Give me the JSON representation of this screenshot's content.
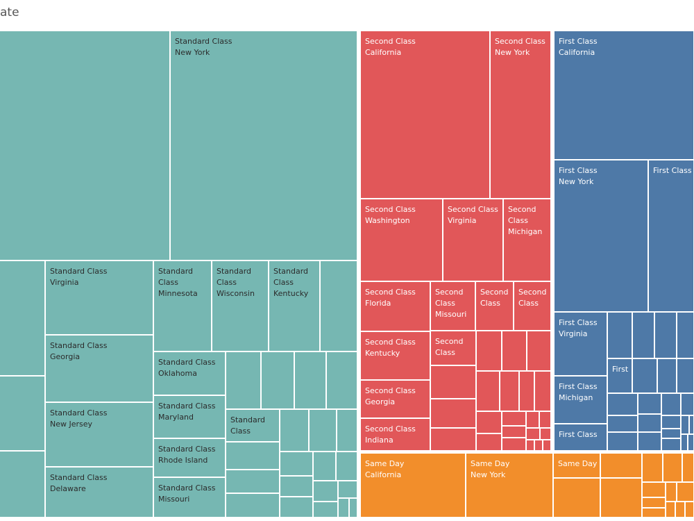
{
  "chart_data": {
    "type": "treemap",
    "title": "ate",
    "colors": {
      "Standard Class": "#76b7b2",
      "Second Class": "#e15759",
      "First Class": "#4e79a7",
      "Same Day": "#f28e2b"
    },
    "tiles": [
      {
        "ship_mode": "Standard Class",
        "state": "",
        "value": 1240
      },
      {
        "ship_mode": "Standard Class",
        "state": "New York",
        "value": 1180
      },
      {
        "ship_mode": "Standard Class",
        "state": "",
        "value": 90
      },
      {
        "ship_mode": "Standard Class",
        "state": "Virginia",
        "value": 218
      },
      {
        "ship_mode": "Standard Class",
        "state": "Minnesota",
        "value": 134
      },
      {
        "ship_mode": "Standard Class",
        "state": "Wisconsin",
        "value": 130
      },
      {
        "ship_mode": "Standard Class",
        "state": "Kentucky",
        "value": 119
      },
      {
        "ship_mode": "Standard Class",
        "state": "",
        "value": 86
      },
      {
        "ship_mode": "Standard Class",
        "state": "",
        "value": 70
      },
      {
        "ship_mode": "Standard Class",
        "state": "Georgia",
        "value": 197
      },
      {
        "ship_mode": "Standard Class",
        "state": "Oklahoma",
        "value": 107
      },
      {
        "ship_mode": "Standard Class",
        "state": "",
        "value": 69
      },
      {
        "ship_mode": "Standard Class",
        "state": "",
        "value": 64
      },
      {
        "ship_mode": "Standard Class",
        "state": "",
        "value": 61
      },
      {
        "ship_mode": "Standard Class",
        "state": "",
        "value": 58
      },
      {
        "ship_mode": "Standard Class",
        "state": "",
        "value": 66
      },
      {
        "ship_mode": "Standard Class",
        "state": "New Jersey",
        "value": 197
      },
      {
        "ship_mode": "Standard Class",
        "state": "Maryland",
        "value": 104
      },
      {
        "ship_mode": "Standard Class",
        "state": "",
        "value": 63
      },
      {
        "ship_mode": "Standard Class",
        "state": "",
        "value": 55
      },
      {
        "ship_mode": "Standard Class",
        "state": "",
        "value": 55
      },
      {
        "ship_mode": "Standard Class",
        "state": "",
        "value": 39
      },
      {
        "ship_mode": "Standard Class",
        "state": "Rhode Island",
        "value": 104
      },
      {
        "ship_mode": "Standard Class",
        "state": "",
        "value": 82
      },
      {
        "ship_mode": "Standard Class",
        "state": "Delaware",
        "value": 198
      },
      {
        "ship_mode": "Standard Class",
        "state": "Missouri",
        "value": 98
      },
      {
        "ship_mode": "Second Class",
        "state": "California",
        "value": 376
      },
      {
        "ship_mode": "Second Class",
        "state": "New York",
        "value": 196
      },
      {
        "ship_mode": "Second Class",
        "state": "Washington",
        "value": 120
      },
      {
        "ship_mode": "Second Class",
        "state": "Virginia",
        "value": 87
      },
      {
        "ship_mode": "Second Class",
        "state": "Michigan",
        "value": 67
      },
      {
        "ship_mode": "Second Class",
        "state": "Florida",
        "value": 63
      },
      {
        "ship_mode": "Second Class",
        "state": "Missouri",
        "value": 43
      },
      {
        "ship_mode": "Second Class",
        "state": "",
        "value": 35
      },
      {
        "ship_mode": "Second Class",
        "state": "",
        "value": 34
      },
      {
        "ship_mode": "Second Class",
        "state": "Kentucky",
        "value": 62
      },
      {
        "ship_mode": "Second Class",
        "state": "",
        "value": 26
      },
      {
        "ship_mode": "Second Class",
        "state": "Georgia",
        "value": 44
      },
      {
        "ship_mode": "Second Class",
        "state": "Indiana",
        "value": 39
      },
      {
        "ship_mode": "First Class",
        "state": "California",
        "value": 248
      },
      {
        "ship_mode": "First Class",
        "state": "New York",
        "value": 179
      },
      {
        "ship_mode": "First Class",
        "state": "",
        "value": 95
      },
      {
        "ship_mode": "First Class",
        "state": "Virginia",
        "value": 55
      },
      {
        "ship_mode": "First Class",
        "state": "",
        "value": 22
      },
      {
        "ship_mode": "First Class",
        "state": "Michigan",
        "value": 46
      },
      {
        "ship_mode": "First Class",
        "state": "",
        "value": 27
      },
      {
        "ship_mode": "Same Day",
        "state": "California",
        "value": 90
      },
      {
        "ship_mode": "Same Day",
        "state": "New York",
        "value": 75
      },
      {
        "ship_mode": "Same Day",
        "state": "",
        "value": 27
      }
    ]
  }
}
